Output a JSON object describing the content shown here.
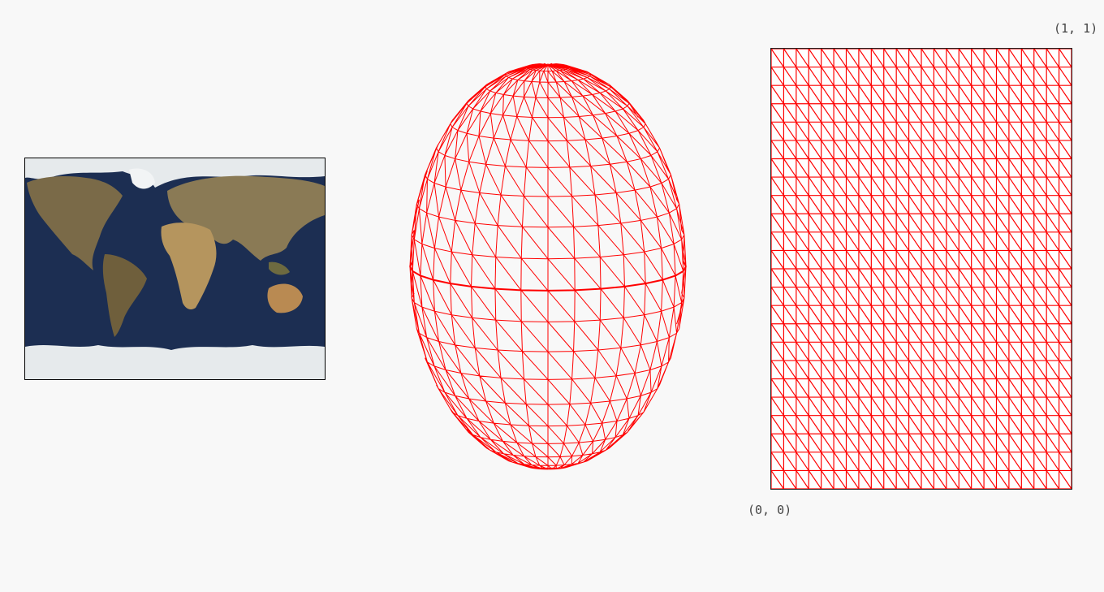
{
  "texture_panel": {
    "image": "equirectangular-earth-texture",
    "ocean_color": "#1c2e52",
    "land_color": "#8a7a55",
    "ice_color": "#e6eaec"
  },
  "sphere_panel": {
    "wireframe_color": "#ff0000",
    "background": "#ffffff"
  },
  "uv_panel": {
    "wireframe_color": "#ff0000",
    "border_color": "#222222"
  },
  "labels": {
    "top_right": "(1, 1)",
    "bottom_left": "(0, 0)"
  }
}
